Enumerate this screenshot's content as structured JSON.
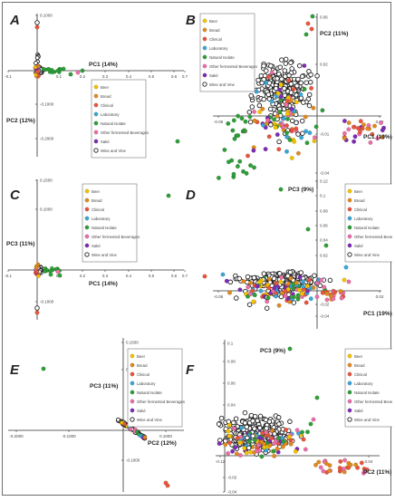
{
  "legend": {
    "entries": [
      {
        "name": "Beer",
        "color": "#f2c200",
        "hollow": false
      },
      {
        "name": "Bread",
        "color": "#e08a1e",
        "hollow": false
      },
      {
        "name": "Clinical",
        "color": "#e8553d",
        "hollow": false
      },
      {
        "name": "Laboratory",
        "color": "#3aa6d6",
        "hollow": false
      },
      {
        "name": "Natural Isolate",
        "color": "#2e9e38",
        "hollow": false
      },
      {
        "name": "Other fermented Beverages",
        "color": "#e96fa8",
        "hollow": false
      },
      {
        "name": "Saké",
        "color": "#7e2bb5",
        "hollow": false
      },
      {
        "name": "Wine and Vine",
        "color": "#222222",
        "hollow": true
      }
    ]
  },
  "chart_data": [
    {
      "type": "scatter",
      "panel": "A",
      "xlabel": "PC1 (14%)",
      "ylabel": "PC2 (12%)",
      "xticks": [
        "-0.1",
        "0.1",
        "0.2",
        "0.3",
        "0.4",
        "0.5",
        "0.6",
        "0.7"
      ],
      "yticks": [
        "0.1000",
        "-0.1000",
        "-0.2000"
      ]
    },
    {
      "type": "scatter",
      "panel": "B",
      "xlabel": "PC1 (19%)",
      "ylabel": "PC2 (11%)",
      "xticks": [
        "-0.08",
        "0.02"
      ],
      "yticks": [
        "0.06",
        "0.02",
        "-0.01",
        "-0.04"
      ]
    },
    {
      "type": "scatter",
      "panel": "C",
      "xlabel": "PC1 (14%)",
      "ylabel": "PC3 (11%)",
      "xticks": [
        "-0.1",
        "0.1",
        "0.2",
        "0.3",
        "0.4",
        "0.5",
        "0.6",
        "0.7"
      ],
      "yticks": [
        "0.1500",
        "0.1000",
        "-0.1000"
      ]
    },
    {
      "type": "scatter",
      "panel": "D",
      "xlabel": "PC1 (19%)",
      "ylabel": "PC3 (9%)",
      "xticks": [
        "-0.08",
        "0.02"
      ],
      "yticks": [
        "0.12",
        "0.1",
        "0.08",
        "0.06",
        "0.04",
        "0.02",
        "-0.02",
        "-0.04"
      ]
    },
    {
      "type": "scatter",
      "panel": "E",
      "xlabel": "PC2 (12%)",
      "ylabel": "PC3 (11%)",
      "xticks": [
        "-0.2000",
        "-0.1000",
        "0.1000"
      ],
      "yticks": [
        "0.1500",
        "0.1000",
        "-0.1000"
      ]
    },
    {
      "type": "scatter",
      "panel": "F",
      "xlabel": "PC2 (11%)",
      "ylabel": "PC3 (9%)",
      "xticks": [
        "-0.12",
        "0.04"
      ],
      "yticks": [
        "0.1",
        "0.08",
        "0.06",
        "0.04",
        "0.02",
        "-0.02",
        "-0.04"
      ]
    }
  ]
}
